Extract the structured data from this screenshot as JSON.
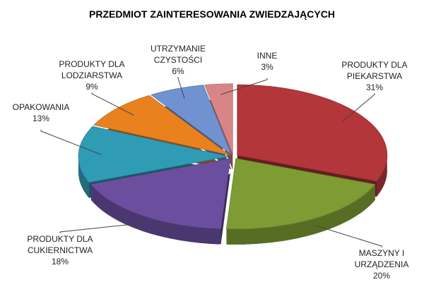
{
  "chart_data": {
    "type": "pie",
    "title": "PRZEDMIOT ZAINTERESOWANIA ZWIEDZAJĄCYCH",
    "categories": [
      "PRODUKTY DLA PIEKARSTWA",
      "MASZYNY I URZĄDZENIA",
      "PRODUKTY DLA CUKIERNICTWA",
      "OPAKOWANIA",
      "PRODUKTY DLA LODZIARSTWA",
      "UTRZYMANIE CZYSTOŚCI",
      "INNE"
    ],
    "values": [
      31,
      20,
      18,
      13,
      9,
      6,
      3
    ],
    "value_labels": [
      "31%",
      "20%",
      "18%",
      "13%",
      "9%",
      "6%",
      "3%"
    ],
    "colors": [
      "#b3363a",
      "#7d9c33",
      "#6b4f9e",
      "#2f9bb5",
      "#e9811f",
      "#7092d0",
      "#d98585"
    ]
  }
}
